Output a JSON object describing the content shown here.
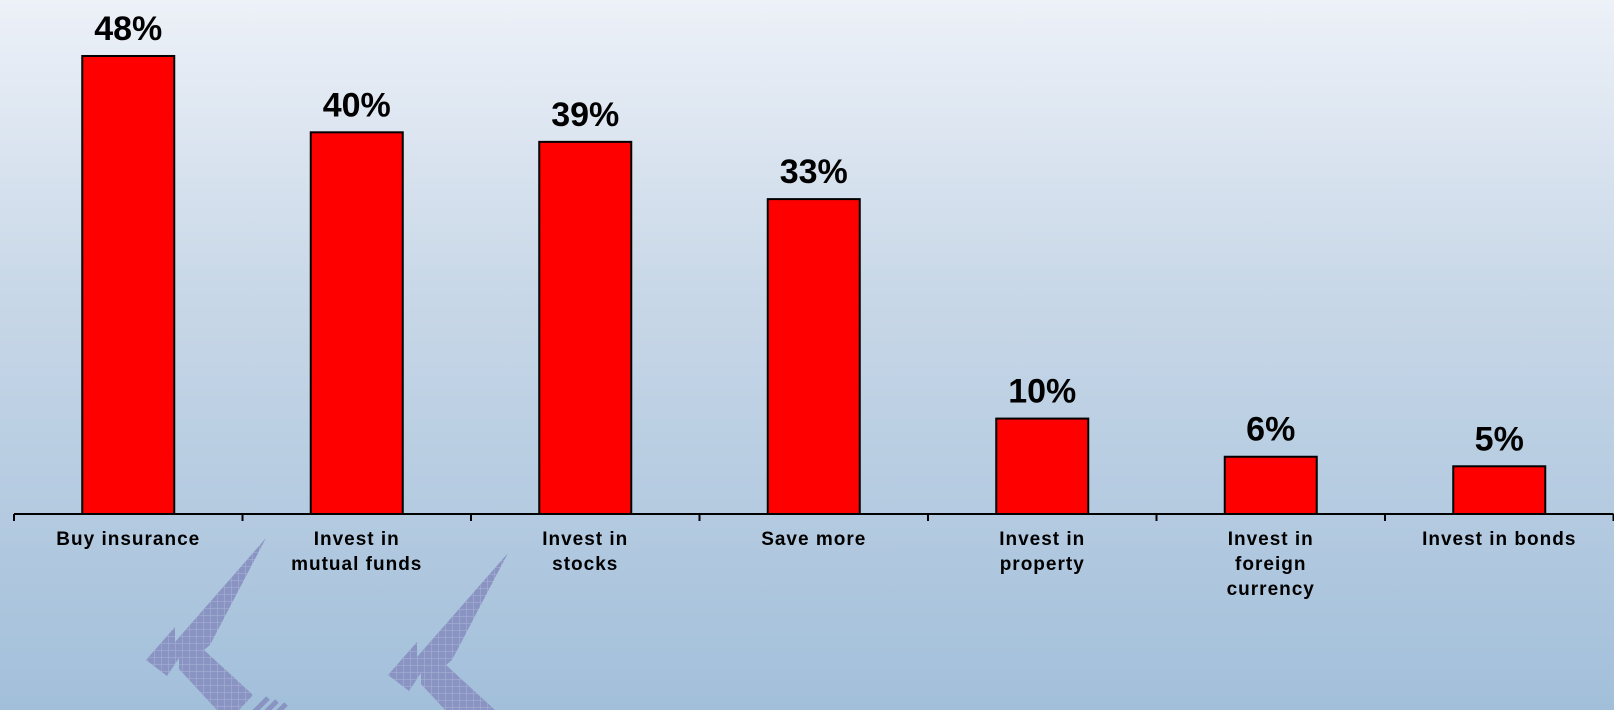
{
  "chart_data": {
    "type": "bar",
    "categories": [
      [
        "Buy insurance"
      ],
      [
        "Invest in",
        "mutual funds"
      ],
      [
        "Invest in",
        "stocks"
      ],
      [
        "Save more"
      ],
      [
        "Invest in",
        "property"
      ],
      [
        "Invest in",
        "foreign",
        "currency"
      ],
      [
        "Invest in bonds"
      ]
    ],
    "values": [
      48,
      40,
      39,
      33,
      10,
      6,
      5
    ],
    "data_labels": [
      "48%",
      "40%",
      "39%",
      "33%",
      "10%",
      "6%",
      "5%"
    ],
    "ylim": [
      0,
      50
    ],
    "grid": false,
    "legend": "none"
  },
  "colors": {
    "bar_fill": "#ff0000",
    "bar_stroke": "#000000",
    "axis": "#000000",
    "arrow_fill": "#8a94c2",
    "arrow_grid": "#aab3d6"
  },
  "decorations": {
    "arrow_icon": "up-left-arrow-icon",
    "arrow_count": 2
  }
}
